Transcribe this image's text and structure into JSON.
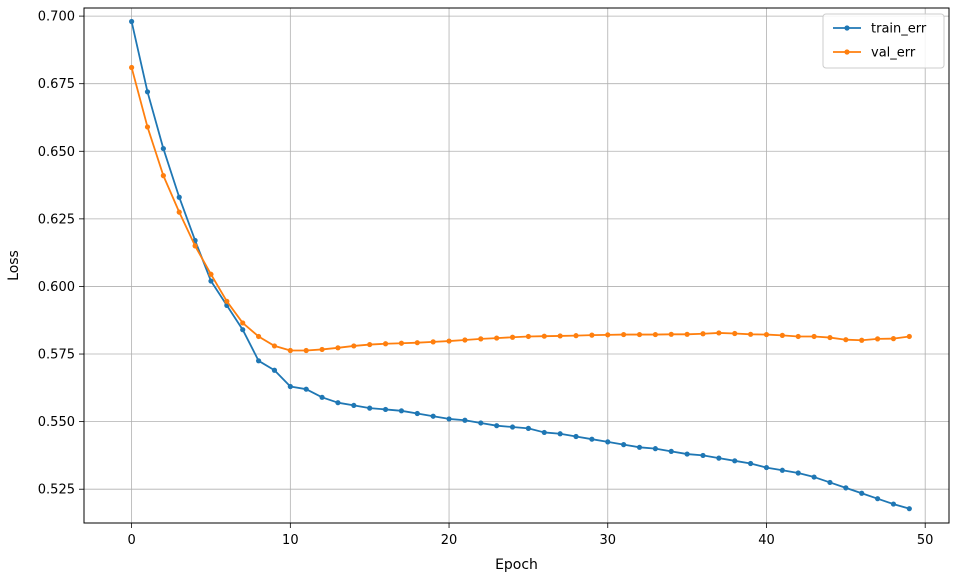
{
  "chart_data": {
    "type": "line",
    "title": "",
    "xlabel": "Epoch",
    "ylabel": "Loss",
    "xlim": [
      -3,
      51.5
    ],
    "ylim": [
      0.5125,
      0.703
    ],
    "xticks": [
      0,
      10,
      20,
      30,
      40,
      50
    ],
    "yticks": [
      0.525,
      0.55,
      0.575,
      0.6,
      0.625,
      0.65,
      0.675,
      0.7
    ],
    "xtick_labels": [
      "0",
      "10",
      "20",
      "30",
      "40",
      "50"
    ],
    "ytick_labels": [
      "0.525",
      "0.550",
      "0.575",
      "0.600",
      "0.625",
      "0.650",
      "0.675",
      "0.700"
    ],
    "grid": true,
    "legend_position": "top-right",
    "x": [
      0,
      1,
      2,
      3,
      4,
      5,
      6,
      7,
      8,
      9,
      10,
      11,
      12,
      13,
      14,
      15,
      16,
      17,
      18,
      19,
      20,
      21,
      22,
      23,
      24,
      25,
      26,
      27,
      28,
      29,
      30,
      31,
      32,
      33,
      34,
      35,
      36,
      37,
      38,
      39,
      40,
      41,
      42,
      43,
      44,
      45,
      46,
      47,
      48,
      49
    ],
    "series": [
      {
        "name": "train_err",
        "color": "#1f77b4",
        "values": [
          0.698,
          0.672,
          0.651,
          0.633,
          0.617,
          0.602,
          0.593,
          0.584,
          0.5725,
          0.569,
          0.563,
          0.562,
          0.559,
          0.557,
          0.556,
          0.555,
          0.5545,
          0.554,
          0.553,
          0.552,
          0.551,
          0.5505,
          0.5495,
          0.5485,
          0.548,
          0.5475,
          0.546,
          0.5455,
          0.5445,
          0.5435,
          0.5425,
          0.5415,
          0.5405,
          0.54,
          0.539,
          0.538,
          0.5375,
          0.5365,
          0.5355,
          0.5345,
          0.533,
          0.532,
          0.531,
          0.5295,
          0.5275,
          0.5255,
          0.5235,
          0.5215,
          0.5195,
          0.5178
        ]
      },
      {
        "name": "val_err",
        "color": "#ff7f0e",
        "values": [
          0.681,
          0.659,
          0.641,
          0.6275,
          0.615,
          0.6045,
          0.5945,
          0.5865,
          0.5815,
          0.578,
          0.5763,
          0.5763,
          0.5767,
          0.5773,
          0.578,
          0.5785,
          0.5788,
          0.579,
          0.5792,
          0.5795,
          0.5798,
          0.5802,
          0.5806,
          0.5809,
          0.5812,
          0.5815,
          0.5816,
          0.5817,
          0.5818,
          0.582,
          0.5821,
          0.5822,
          0.5822,
          0.5822,
          0.5823,
          0.5823,
          0.5825,
          0.5828,
          0.5826,
          0.5823,
          0.5822,
          0.5819,
          0.5815,
          0.5815,
          0.5811,
          0.5803,
          0.5801,
          0.5806,
          0.5807,
          0.5815
        ]
      }
    ]
  }
}
